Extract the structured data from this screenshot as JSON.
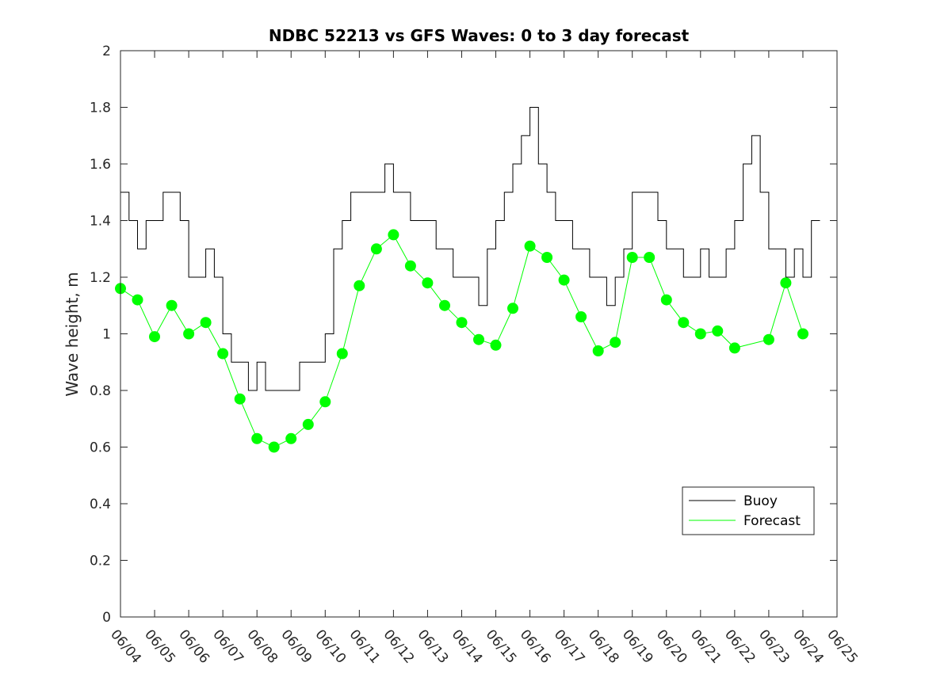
{
  "chart_data": {
    "type": "line",
    "title": "NDBC 52213 vs GFS Waves: 0 to 3 day forecast",
    "xlabel": "",
    "ylabel": "Wave height, m",
    "ylim": [
      0,
      2
    ],
    "xlim": [
      "06/04",
      "06/25"
    ],
    "x_tick_labels": [
      "06/04",
      "06/05",
      "06/06",
      "06/07",
      "06/08",
      "06/09",
      "06/10",
      "06/11",
      "06/12",
      "06/13",
      "06/14",
      "06/15",
      "06/16",
      "06/17",
      "06/18",
      "06/19",
      "06/20",
      "06/21",
      "06/22",
      "06/23",
      "06/24",
      "06/25"
    ],
    "y_tick_labels": [
      "0",
      "0.2",
      "0.4",
      "0.6",
      "0.8",
      "1",
      "1.2",
      "1.4",
      "1.6",
      "1.8",
      "2"
    ],
    "legend": {
      "position": "lower-right",
      "entries": [
        "Buoy",
        "Forecast"
      ]
    },
    "colors": {
      "buoy": "#000000",
      "forecast": "#00ff00",
      "axis": "#262626"
    },
    "series": [
      {
        "name": "Buoy",
        "x": [
          "06/04",
          "06/04 06h",
          "06/04 12h",
          "06/04 18h",
          "06/05",
          "06/05 06h",
          "06/05 12h",
          "06/05 18h",
          "06/06",
          "06/06 06h",
          "06/06 12h",
          "06/06 18h",
          "06/07",
          "06/07 06h",
          "06/07 12h",
          "06/07 18h",
          "06/08",
          "06/08 06h",
          "06/08 12h",
          "06/08 18h",
          "06/09",
          "06/09 06h",
          "06/09 12h",
          "06/09 18h",
          "06/10",
          "06/10 06h",
          "06/10 12h",
          "06/10 18h",
          "06/11",
          "06/11 06h",
          "06/11 12h",
          "06/11 18h",
          "06/12",
          "06/12 06h",
          "06/12 12h",
          "06/12 18h",
          "06/13",
          "06/13 06h",
          "06/13 12h",
          "06/13 18h",
          "06/14",
          "06/14 06h",
          "06/14 12h",
          "06/14 18h",
          "06/15",
          "06/15 06h",
          "06/15 12h",
          "06/15 18h",
          "06/16",
          "06/16 06h",
          "06/16 12h",
          "06/16 18h",
          "06/17",
          "06/17 06h",
          "06/17 12h",
          "06/17 18h",
          "06/18",
          "06/18 06h",
          "06/18 12h",
          "06/18 18h",
          "06/19",
          "06/19 06h",
          "06/19 12h",
          "06/19 18h",
          "06/20",
          "06/20 06h",
          "06/20 12h",
          "06/20 18h",
          "06/21",
          "06/21 06h",
          "06/21 12h",
          "06/21 18h",
          "06/22",
          "06/22 06h",
          "06/22 12h",
          "06/22 18h",
          "06/23",
          "06/23 06h",
          "06/23 12h",
          "06/23 18h",
          "06/24",
          "06/24 06h"
        ],
        "values": [
          1.5,
          1.4,
          1.3,
          1.4,
          1.4,
          1.5,
          1.5,
          1.4,
          1.2,
          1.2,
          1.3,
          1.2,
          1.0,
          0.9,
          0.9,
          0.8,
          0.9,
          0.8,
          0.8,
          0.8,
          0.8,
          0.9,
          0.9,
          0.9,
          1.0,
          1.3,
          1.4,
          1.5,
          1.5,
          1.5,
          1.5,
          1.6,
          1.5,
          1.5,
          1.4,
          1.4,
          1.4,
          1.3,
          1.3,
          1.2,
          1.2,
          1.2,
          1.1,
          1.3,
          1.4,
          1.5,
          1.6,
          1.7,
          1.8,
          1.6,
          1.5,
          1.4,
          1.4,
          1.3,
          1.3,
          1.2,
          1.2,
          1.1,
          1.2,
          1.3,
          1.5,
          1.5,
          1.5,
          1.4,
          1.3,
          1.3,
          1.2,
          1.2,
          1.3,
          1.2,
          1.2,
          1.3,
          1.4,
          1.6,
          1.7,
          1.5,
          1.3,
          1.3,
          1.2,
          1.3,
          1.2,
          1.4
        ]
      },
      {
        "name": "Forecast",
        "x": [
          "06/04",
          "06/04 12h",
          "06/05",
          "06/05 12h",
          "06/06",
          "06/06 12h",
          "06/07",
          "06/07 12h",
          "06/08",
          "06/08 12h",
          "06/09",
          "06/09 12h",
          "06/10",
          "06/10 12h",
          "06/11",
          "06/11 12h",
          "06/12",
          "06/12 12h",
          "06/13",
          "06/13 12h",
          "06/14",
          "06/14 12h",
          "06/15",
          "06/15 12h",
          "06/16",
          "06/16 12h",
          "06/17",
          "06/17 12h",
          "06/18",
          "06/18 12h",
          "06/19",
          "06/19 12h",
          "06/20",
          "06/20 12h",
          "06/21",
          "06/21 12h",
          "06/22",
          "06/23",
          "06/23 12h",
          "06/24"
        ],
        "values": [
          1.16,
          1.12,
          0.99,
          1.1,
          1.0,
          1.04,
          0.93,
          0.77,
          0.63,
          0.6,
          0.63,
          0.68,
          0.76,
          0.93,
          1.17,
          1.3,
          1.35,
          1.24,
          1.18,
          1.1,
          1.04,
          0.98,
          0.96,
          1.09,
          1.31,
          1.27,
          1.19,
          1.06,
          0.94,
          0.97,
          1.27,
          1.27,
          1.12,
          1.04,
          1.0,
          1.01,
          0.95,
          0.98,
          1.18,
          1.0
        ]
      }
    ]
  }
}
